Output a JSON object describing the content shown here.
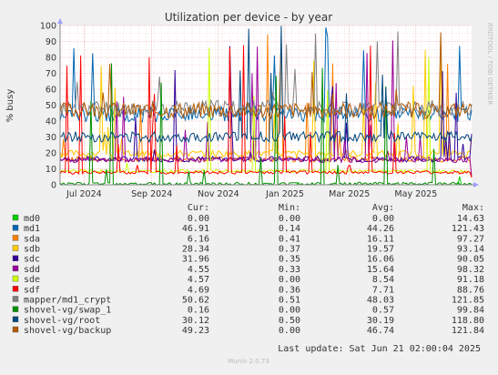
{
  "chart_data": {
    "type": "line",
    "title": "Utilization per device - by year",
    "ylabel": "% busy",
    "ylim": [
      0,
      100
    ],
    "yticks": [
      0,
      10,
      20,
      30,
      40,
      50,
      60,
      70,
      80,
      90,
      100
    ],
    "xlim": [
      "2024-06-09",
      "2025-06-21"
    ],
    "xticks": [
      {
        "date": "2024-07-01",
        "label": "Jul 2024"
      },
      {
        "date": "2024-09-01",
        "label": "Sep 2024"
      },
      {
        "date": "2024-11-01",
        "label": "Nov 2024"
      },
      {
        "date": "2025-01-01",
        "label": "Jan 2025"
      },
      {
        "date": "2025-03-01",
        "label": "Mar 2025"
      },
      {
        "date": "2025-05-01",
        "label": "May 2025"
      }
    ],
    "grid": true,
    "side_text": "RRDTOOL / TOBI OETIKER",
    "columns": [
      "Cur:",
      "Min:",
      "Avg:",
      "Max:"
    ],
    "series": [
      {
        "name": "md0",
        "color": "#00cc00",
        "cur": "0.00",
        "min": "0.00",
        "avg": "0.00",
        "max": "14.63"
      },
      {
        "name": "md1",
        "color": "#0066b3",
        "cur": "46.91",
        "min": "0.14",
        "avg": "44.26",
        "max": "121.43"
      },
      {
        "name": "sda",
        "color": "#ff8000",
        "cur": "6.16",
        "min": "0.41",
        "avg": "16.11",
        "max": "97.27"
      },
      {
        "name": "sdb",
        "color": "#ffcc00",
        "cur": "28.34",
        "min": "0.37",
        "avg": "19.57",
        "max": "93.14"
      },
      {
        "name": "sdc",
        "color": "#330099",
        "cur": "31.96",
        "min": "0.35",
        "avg": "16.06",
        "max": "90.05"
      },
      {
        "name": "sdd",
        "color": "#990099",
        "cur": "4.55",
        "min": "0.33",
        "avg": "15.64",
        "max": "98.32"
      },
      {
        "name": "sde",
        "color": "#ccff00",
        "cur": "4.57",
        "min": "0.00",
        "avg": "8.54",
        "max": "91.18"
      },
      {
        "name": "sdf",
        "color": "#ff0000",
        "cur": "4.69",
        "min": "0.36",
        "avg": "7.71",
        "max": "88.76"
      },
      {
        "name": "mapper/md1_crypt",
        "color": "#808080",
        "cur": "50.62",
        "min": "0.51",
        "avg": "48.03",
        "max": "121.85"
      },
      {
        "name": "shovel-vg/swap_1",
        "color": "#008f00",
        "cur": "0.16",
        "min": "0.00",
        "avg": "0.57",
        "max": "99.84"
      },
      {
        "name": "shovel-vg/root",
        "color": "#00487d",
        "cur": "30.12",
        "min": "0.50",
        "avg": "30.19",
        "max": "118.80"
      },
      {
        "name": "shovel-vg/backup",
        "color": "#b35a00",
        "cur": "49.23",
        "min": "0.00",
        "avg": "46.74",
        "max": "121.84"
      }
    ],
    "footer_update": "Last update: Sat Jun 21 02:00:04 2025",
    "footer_version": "Munin 2.0.73"
  }
}
